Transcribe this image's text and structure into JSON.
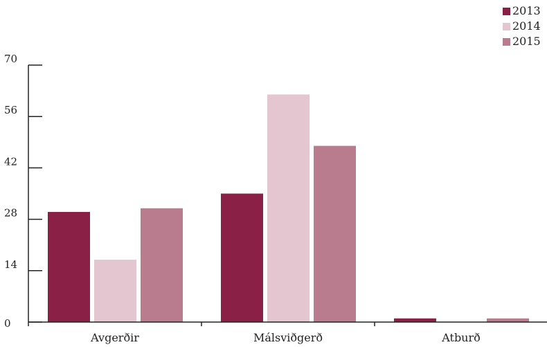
{
  "chart_data": {
    "type": "bar",
    "categories": [
      "Avgerðir",
      "Málsviðgerð",
      "Atburð"
    ],
    "series": [
      {
        "name": "2013",
        "color": "#8b2046",
        "values": [
          30,
          35,
          1
        ]
      },
      {
        "name": "2014",
        "color": "#e3c6d0",
        "values": [
          17,
          62,
          0
        ]
      },
      {
        "name": "2015",
        "color": "#b97b8e",
        "values": [
          31,
          48,
          1
        ]
      }
    ],
    "yticks": [
      0,
      14,
      28,
      42,
      56,
      70
    ],
    "ylim": [
      0,
      70
    ],
    "title": "",
    "xlabel": "",
    "ylabel": "",
    "legend_position": "top-right",
    "grid": false
  }
}
